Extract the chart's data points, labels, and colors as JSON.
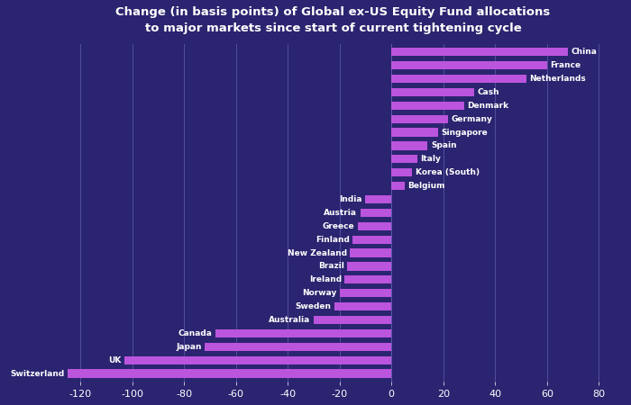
{
  "title": "Change (in basis points) of Global ex-US Equity Fund allocations\nto major markets since start of current tightening cycle",
  "background_color": "#2b2470",
  "bar_color": "#bb55dd",
  "grid_color": "#5a5aaa",
  "text_color": "#ffffff",
  "xlim": [
    -135,
    90
  ],
  "xticks": [
    -120,
    -100,
    -80,
    -60,
    -40,
    -20,
    0,
    20,
    40,
    60,
    80
  ],
  "categories": [
    "Switzerland",
    "UK",
    "Japan",
    "Canada",
    "Australia",
    "Sweden",
    "Norway",
    "Ireland",
    "Brazil",
    "New Zealand",
    "Finland",
    "Greece",
    "Austria",
    "India",
    "Belgium",
    "Korea (South)",
    "Italy",
    "Spain",
    "Singapore",
    "Germany",
    "Denmark",
    "Cash",
    "Netherlands",
    "France",
    "China"
  ],
  "values": [
    -125,
    -103,
    -72,
    -68,
    -30,
    -22,
    -20,
    -18,
    -17,
    -16,
    -15,
    -13,
    -12,
    -10,
    5,
    8,
    10,
    14,
    18,
    22,
    28,
    32,
    52,
    60,
    68
  ],
  "label_fontsize": 6.5,
  "tick_fontsize": 8,
  "title_fontsize": 9.5,
  "bar_height": 0.62
}
